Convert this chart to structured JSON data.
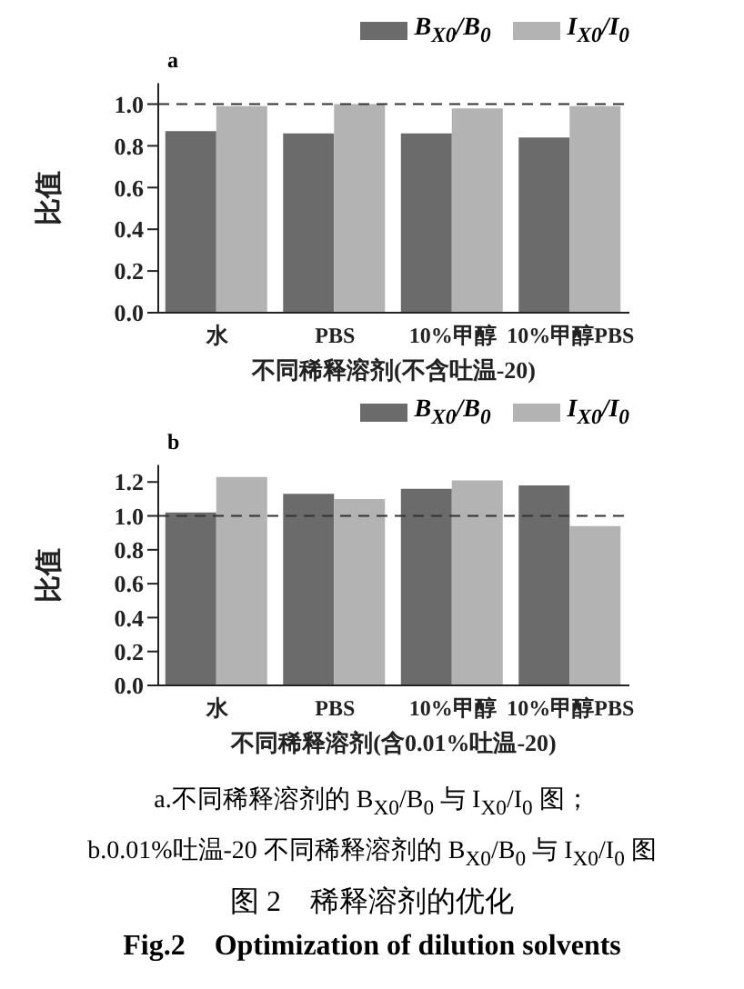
{
  "chart_data": [
    {
      "type": "bar",
      "ylabel": "比值",
      "xlabel": "不同稀释溶剂(不含吐温-20)",
      "categories": [
        "水",
        "PBS",
        "10%甲醇",
        "10%甲醇PBS"
      ],
      "series": [
        {
          "name": "B$_{X0}$/B$_{0}$",
          "color": "#6b6b6b",
          "values": [
            0.87,
            0.86,
            0.86,
            0.84
          ]
        },
        {
          "name": "I$_{X0}$/I$_{0}$",
          "color": "#b3b3b3",
          "values": [
            0.99,
            1.0,
            0.98,
            0.99
          ]
        }
      ],
      "ylim": [
        0,
        1.1
      ],
      "yticks": [
        {
          "value": 0,
          "label": "0.0"
        },
        {
          "value": 0.2,
          "label": "0.2"
        },
        {
          "value": 0.4,
          "label": "0.4"
        },
        {
          "value": 0.6,
          "label": "0.6"
        },
        {
          "value": 0.8,
          "label": "0.8"
        },
        {
          "value": 1,
          "label": "1.0"
        }
      ],
      "ref_lines": [
        {
          "axis": "y",
          "value": 1,
          "color": "#333333",
          "line_style": "dashed"
        }
      ],
      "legend": "top right",
      "annotations": [
        "a"
      ]
    },
    {
      "type": "bar",
      "ylabel": "比值",
      "xlabel": "不同稀释溶剂(含0.01%吐温-20)",
      "categories": [
        "水",
        "PBS",
        "10%甲醇",
        "10%甲醇PBS"
      ],
      "series": [
        {
          "name": "B$_{X0}$/B$_{0}$",
          "color": "#6b6b6b",
          "values": [
            1.02,
            1.13,
            1.16,
            1.18
          ]
        },
        {
          "name": "I$_{X0}$/I$_{0}$",
          "color": "#b3b3b3",
          "values": [
            1.23,
            1.1,
            1.21,
            0.94
          ]
        }
      ],
      "ylim": [
        0,
        1.3
      ],
      "yticks": [
        {
          "value": 0,
          "label": "0.0"
        },
        {
          "value": 0.2,
          "label": "0.2"
        },
        {
          "value": 0.4,
          "label": "0.4"
        },
        {
          "value": 0.6,
          "label": "0.6"
        },
        {
          "value": 0.8,
          "label": "0.8"
        },
        {
          "value": 1,
          "label": "1.0"
        },
        {
          "value": 1.2,
          "label": "1.2"
        }
      ],
      "ref_lines": [
        {
          "axis": "y",
          "value": 1,
          "color": "#333333",
          "line_style": "dashed"
        }
      ],
      "legend": "top right",
      "annotations": [
        "b",
        "a.不同稀释溶剂的 B$_{X0}$/B$_{0}$ 与 I$_{X0}$/I$_{0}$ 图；",
        "b.0.01%吐温-20 不同稀释溶剂的 B$_{X0}$/B$_{0}$ 与 I$_{X0}$/I$_{0}$ 图",
        "图 2　稀释溶剂的优化",
        "Fig.2　Optimization of dilution solvents"
      ]
    }
  ]
}
